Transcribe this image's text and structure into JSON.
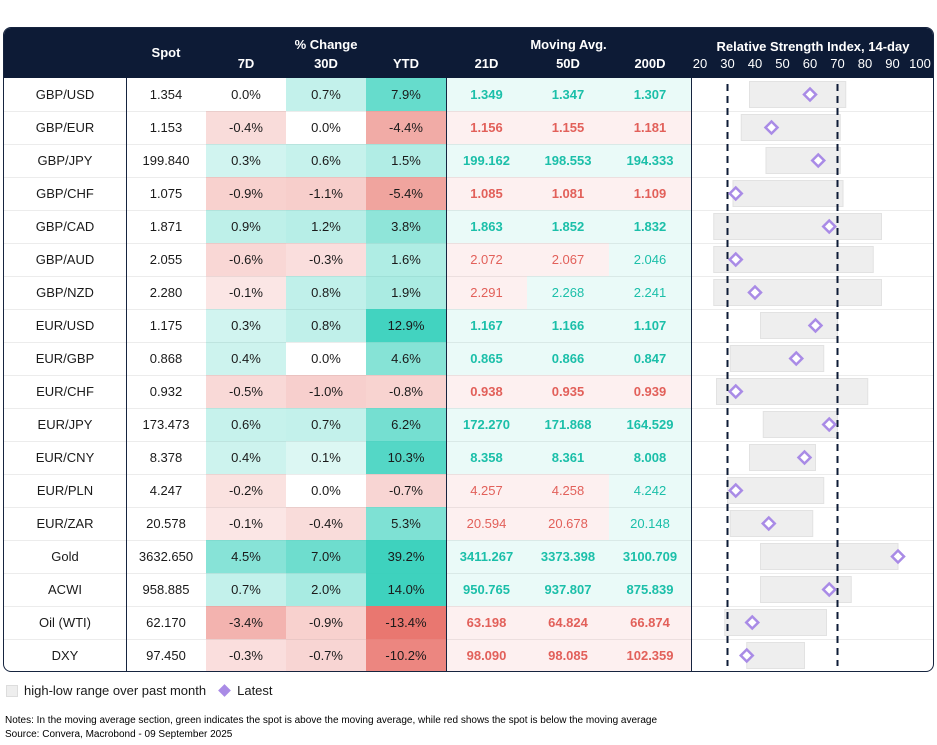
{
  "header": {
    "spot": "Spot",
    "pct_change": "% Change",
    "moving_avg": "Moving Avg.",
    "rsi_title": "Relative Strength Index, 14-day",
    "cols": {
      "d7": "7D",
      "d30": "30D",
      "ytd": "YTD",
      "ma21": "21D",
      "ma50": "50D",
      "ma200": "200D"
    }
  },
  "chart_data": {
    "type": "table",
    "rsi_axis": {
      "min": 20,
      "max": 100,
      "ticks": [
        "20",
        "30",
        "40",
        "50",
        "60",
        "70",
        "80",
        "90",
        "100"
      ],
      "ref_lines": [
        30,
        70
      ]
    },
    "rows": [
      {
        "name": "GBP/USD",
        "spot": "1.354",
        "d7": "0.0%",
        "d30": "0.7%",
        "ytd": "7.9%",
        "ma21": "1.349",
        "ma50": "1.347",
        "ma200": "1.307",
        "ma_bold": true,
        "rsi_low": 38,
        "rsi_high": 73,
        "rsi_latest": 60
      },
      {
        "name": "GBP/EUR",
        "spot": "1.153",
        "d7": "-0.4%",
        "d30": "0.0%",
        "ytd": "-4.4%",
        "ma21": "1.156",
        "ma50": "1.155",
        "ma200": "1.181",
        "ma_bold": true,
        "rsi_low": 35,
        "rsi_high": 71,
        "rsi_latest": 46
      },
      {
        "name": "GBP/JPY",
        "spot": "199.840",
        "d7": "0.3%",
        "d30": "0.6%",
        "ytd": "1.5%",
        "ma21": "199.162",
        "ma50": "198.553",
        "ma200": "194.333",
        "ma_bold": true,
        "rsi_low": 44,
        "rsi_high": 71,
        "rsi_latest": 63
      },
      {
        "name": "GBP/CHF",
        "spot": "1.075",
        "d7": "-0.9%",
        "d30": "-1.1%",
        "ytd": "-5.4%",
        "ma21": "1.085",
        "ma50": "1.081",
        "ma200": "1.109",
        "ma_bold": true,
        "rsi_low": 32,
        "rsi_high": 72,
        "rsi_latest": 33
      },
      {
        "name": "GBP/CAD",
        "spot": "1.871",
        "d7": "0.9%",
        "d30": "1.2%",
        "ytd": "3.8%",
        "ma21": "1.863",
        "ma50": "1.852",
        "ma200": "1.832",
        "ma_bold": true,
        "rsi_low": 25,
        "rsi_high": 86,
        "rsi_latest": 67
      },
      {
        "name": "GBP/AUD",
        "spot": "2.055",
        "d7": "-0.6%",
        "d30": "-0.3%",
        "ytd": "1.6%",
        "ma21": "2.072",
        "ma50": "2.067",
        "ma200": "2.046",
        "ma_bold": false,
        "rsi_low": 25,
        "rsi_high": 83,
        "rsi_latest": 33
      },
      {
        "name": "GBP/NZD",
        "spot": "2.280",
        "d7": "-0.1%",
        "d30": "0.8%",
        "ytd": "1.9%",
        "ma21": "2.291",
        "ma50": "2.268",
        "ma200": "2.241",
        "ma_bold": false,
        "rsi_low": 25,
        "rsi_high": 86,
        "rsi_latest": 40
      },
      {
        "name": "EUR/USD",
        "spot": "1.175",
        "d7": "0.3%",
        "d30": "0.8%",
        "ytd": "12.9%",
        "ma21": "1.167",
        "ma50": "1.166",
        "ma200": "1.107",
        "ma_bold": true,
        "rsi_low": 42,
        "rsi_high": 70,
        "rsi_latest": 62
      },
      {
        "name": "EUR/GBP",
        "spot": "0.868",
        "d7": "0.4%",
        "d30": "0.0%",
        "ytd": "4.6%",
        "ma21": "0.865",
        "ma50": "0.866",
        "ma200": "0.847",
        "ma_bold": true,
        "rsi_low": 31,
        "rsi_high": 65,
        "rsi_latest": 55
      },
      {
        "name": "EUR/CHF",
        "spot": "0.932",
        "d7": "-0.5%",
        "d30": "-1.0%",
        "ytd": "-0.8%",
        "ma21": "0.938",
        "ma50": "0.935",
        "ma200": "0.939",
        "ma_bold": true,
        "rsi_low": 26,
        "rsi_high": 81,
        "rsi_latest": 33
      },
      {
        "name": "EUR/JPY",
        "spot": "173.473",
        "d7": "0.6%",
        "d30": "0.7%",
        "ytd": "6.2%",
        "ma21": "172.270",
        "ma50": "171.868",
        "ma200": "164.529",
        "ma_bold": true,
        "rsi_low": 43,
        "rsi_high": 70,
        "rsi_latest": 67
      },
      {
        "name": "EUR/CNY",
        "spot": "8.378",
        "d7": "0.4%",
        "d30": "0.1%",
        "ytd": "10.3%",
        "ma21": "8.358",
        "ma50": "8.361",
        "ma200": "8.008",
        "ma_bold": true,
        "rsi_low": 38,
        "rsi_high": 62,
        "rsi_latest": 58
      },
      {
        "name": "EUR/PLN",
        "spot": "4.247",
        "d7": "-0.2%",
        "d30": "0.0%",
        "ytd": "-0.7%",
        "ma21": "4.257",
        "ma50": "4.258",
        "ma200": "4.242",
        "ma_bold": false,
        "rsi_low": 30,
        "rsi_high": 65,
        "rsi_latest": 33
      },
      {
        "name": "EUR/ZAR",
        "spot": "20.578",
        "d7": "-0.1%",
        "d30": "-0.4%",
        "ytd": "5.3%",
        "ma21": "20.594",
        "ma50": "20.678",
        "ma200": "20.148",
        "ma_bold": false,
        "rsi_low": 31,
        "rsi_high": 61,
        "rsi_latest": 45
      },
      {
        "name": "Gold",
        "spot": "3632.650",
        "d7": "4.5%",
        "d30": "7.0%",
        "ytd": "39.2%",
        "ma21": "3411.267",
        "ma50": "3373.398",
        "ma200": "3100.709",
        "ma_bold": true,
        "rsi_low": 42,
        "rsi_high": 92,
        "rsi_latest": 92
      },
      {
        "name": "ACWI",
        "spot": "958.885",
        "d7": "0.7%",
        "d30": "2.0%",
        "ytd": "14.0%",
        "ma21": "950.765",
        "ma50": "937.807",
        "ma200": "875.839",
        "ma_bold": true,
        "rsi_low": 42,
        "rsi_high": 75,
        "rsi_latest": 67
      },
      {
        "name": "Oil (WTI)",
        "spot": "62.170",
        "d7": "-3.4%",
        "d30": "-0.9%",
        "ytd": "-13.4%",
        "ma21": "63.198",
        "ma50": "64.824",
        "ma200": "66.874",
        "ma_bold": true,
        "rsi_low": 29,
        "rsi_high": 66,
        "rsi_latest": 39
      },
      {
        "name": "DXY",
        "spot": "97.450",
        "d7": "-0.3%",
        "d30": "-0.7%",
        "ytd": "-10.2%",
        "ma21": "98.090",
        "ma50": "98.085",
        "ma200": "102.359",
        "ma_bold": true,
        "rsi_low": 37,
        "rsi_high": 58,
        "rsi_latest": 37
      }
    ]
  },
  "colors": {
    "header_bg": "#0d1b36",
    "ma_green": "#1bbfa9",
    "ma_red": "#e2605a",
    "range_bar": "#eeeeee",
    "latest_marker": "#a98be6"
  },
  "legend": {
    "range": "high-low range over past month",
    "latest": "Latest"
  },
  "notes": {
    "line1": "Notes: In the moving average section, green indicates the spot is above the moving average, while red shows the spot is below the moving average",
    "line2": "Source: Convera, Macrobond - 09 September 2025"
  }
}
